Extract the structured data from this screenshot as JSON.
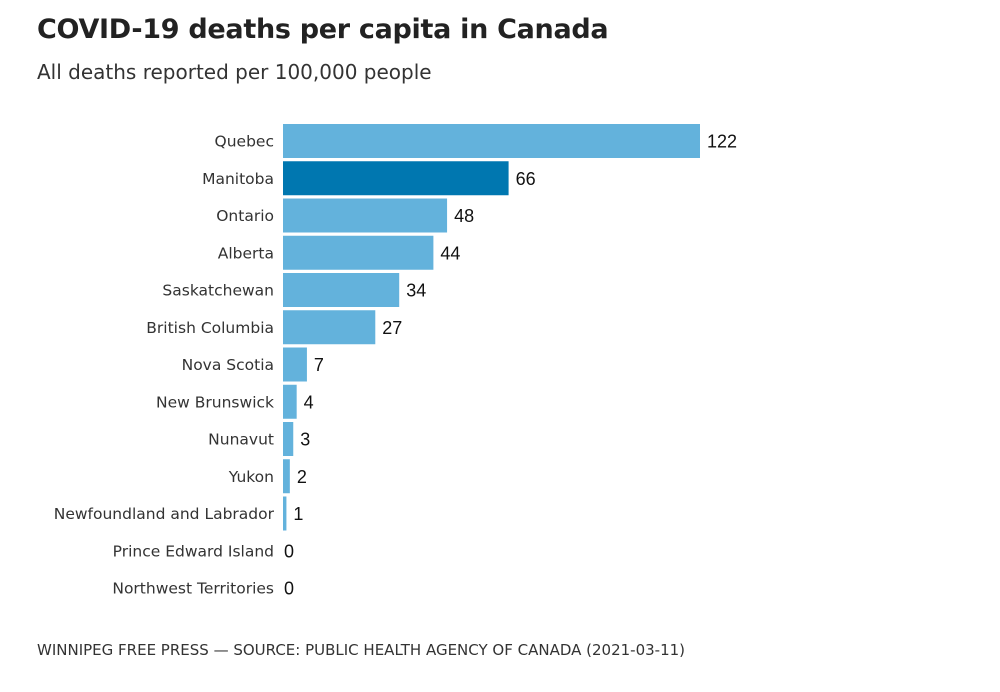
{
  "chart_data": {
    "type": "bar",
    "orientation": "horizontal",
    "title": "COVID-19 deaths per capita in Canada",
    "subtitle": "All deaths reported per 100,000 people",
    "categories": [
      "Quebec",
      "Manitoba",
      "Ontario",
      "Alberta",
      "Saskatchewan",
      "British Columbia",
      "Nova Scotia",
      "New Brunswick",
      "Nunavut",
      "Yukon",
      "Newfoundland and Labrador",
      "Prince Edward Island",
      "Northwest Territories"
    ],
    "values": [
      122,
      66,
      48,
      44,
      34,
      27,
      7,
      4,
      3,
      2,
      1,
      0,
      0
    ],
    "highlight": "Manitoba",
    "xlim": [
      0,
      122
    ],
    "grid": false,
    "colors": {
      "default": "#63b2dc",
      "highlight": "#0077b0"
    }
  },
  "source": "WINNIPEG FREE PRESS — SOURCE: PUBLIC HEALTH AGENCY OF CANADA (2021-03-11)"
}
